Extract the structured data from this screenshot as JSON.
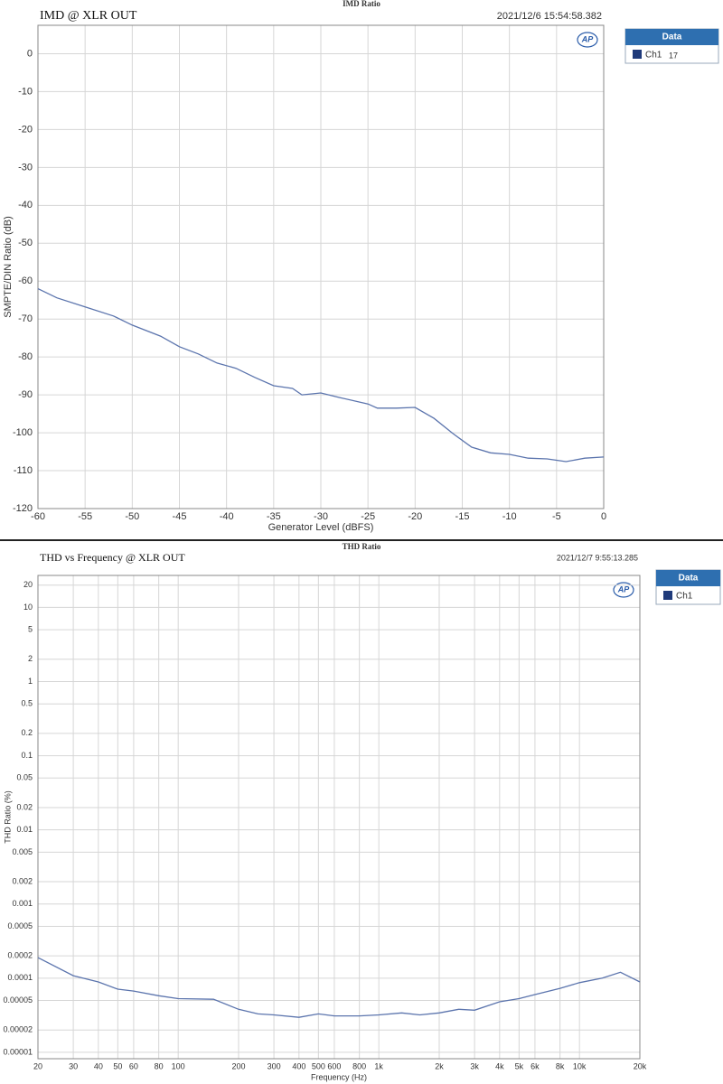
{
  "chart_data": [
    {
      "type": "line",
      "top_title": "IMD Ratio",
      "title": "IMD @ XLR OUT",
      "timestamp": "2021/12/6 15:54:58.382",
      "logo": "AP",
      "legend_title": "Data",
      "legend_note": "17",
      "xlabel": "Generator Level (dBFS)",
      "ylabel": "SMPTE/DIN Ratio (dB)",
      "x": [
        -60,
        -58,
        -55,
        -52,
        -50,
        -47,
        -45,
        -43,
        -41,
        -39,
        -37,
        -35,
        -33,
        -32,
        -30,
        -28,
        -25,
        -24,
        -22,
        -20,
        -18,
        -16,
        -14,
        -12,
        -10,
        -8,
        -6,
        -4,
        -2,
        0
      ],
      "series": [
        {
          "name": "Ch1",
          "color": "#5b74ad",
          "values": [
            -62,
            -64.4,
            -66.8,
            -69.2,
            -71.6,
            -74.5,
            -77.3,
            -79.2,
            -81.6,
            -83,
            -85.4,
            -87.6,
            -88.3,
            -90,
            -89.5,
            -90.7,
            -92.4,
            -93.5,
            -93.5,
            -93.3,
            -96.2,
            -100.2,
            -103.8,
            -105.3,
            -105.7,
            -106.7,
            -106.9,
            -107.6,
            -106.7,
            -106.4
          ]
        }
      ],
      "xlim": [
        -60,
        0
      ],
      "ylim": [
        -120,
        7.5
      ],
      "xticks": [
        -60,
        -55,
        -50,
        -45,
        -40,
        -35,
        -30,
        -25,
        -20,
        -15,
        -10,
        -5,
        0
      ],
      "yticks": [
        0,
        -10,
        -20,
        -30,
        -40,
        -50,
        -60,
        -70,
        -80,
        -90,
        -100,
        -110,
        -120
      ],
      "xscale": "linear",
      "yscale": "linear",
      "grid": true
    },
    {
      "type": "line",
      "top_title": "THD Ratio",
      "title": "THD vs Frequency @ XLR OUT",
      "timestamp": "2021/12/7 9:55:13.285",
      "logo": "AP",
      "legend_title": "Data",
      "xlabel": "Frequency (Hz)",
      "ylabel": "THD Ratio (%)",
      "x": [
        20,
        30,
        40,
        50,
        60,
        80,
        100,
        150,
        200,
        250,
        300,
        400,
        500,
        600,
        800,
        1000,
        1300,
        1600,
        2000,
        2500,
        3000,
        4000,
        5000,
        6000,
        8000,
        10000,
        13000,
        16000,
        20000
      ],
      "series": [
        {
          "name": "Ch1",
          "color": "#5b74ad",
          "values": [
            0.000189,
            0.000108,
            8.9e-05,
            7.1e-05,
            6.7e-05,
            5.8e-05,
            5.3e-05,
            5.2e-05,
            3.8e-05,
            3.3e-05,
            3.2e-05,
            2.96e-05,
            3.3e-05,
            3.1e-05,
            3.1e-05,
            3.2e-05,
            3.4e-05,
            3.2e-05,
            3.4e-05,
            3.8e-05,
            3.7e-05,
            4.8e-05,
            5.3e-05,
            6e-05,
            7.3e-05,
            8.7e-05,
            0.0001,
            0.00012,
            8.9e-05
          ]
        }
      ],
      "xlim": [
        20,
        20000
      ],
      "ylim": [
        8.2e-06,
        27
      ],
      "xticks": [
        20,
        30,
        40,
        50,
        60,
        80,
        100,
        200,
        300,
        400,
        500,
        600,
        800,
        {
          "value": 1000,
          "label": "1k"
        },
        {
          "value": 2000,
          "label": "2k"
        },
        {
          "value": 3000,
          "label": "3k"
        },
        {
          "value": 4000,
          "label": "4k"
        },
        {
          "value": 5000,
          "label": "5k"
        },
        {
          "value": 6000,
          "label": "6k"
        },
        {
          "value": 8000,
          "label": "8k"
        },
        {
          "value": 10000,
          "label": "10k"
        },
        {
          "value": 20000,
          "label": "20k"
        }
      ],
      "yticks": [
        20,
        10,
        5,
        2,
        1,
        0.5,
        0.2,
        0.1,
        0.05,
        0.02,
        0.01,
        0.005,
        0.002,
        0.001,
        0.0005,
        0.0002,
        0.0001,
        5e-05,
        2e-05,
        1e-05
      ],
      "xscale": "log",
      "yscale": "log",
      "grid": true
    }
  ]
}
